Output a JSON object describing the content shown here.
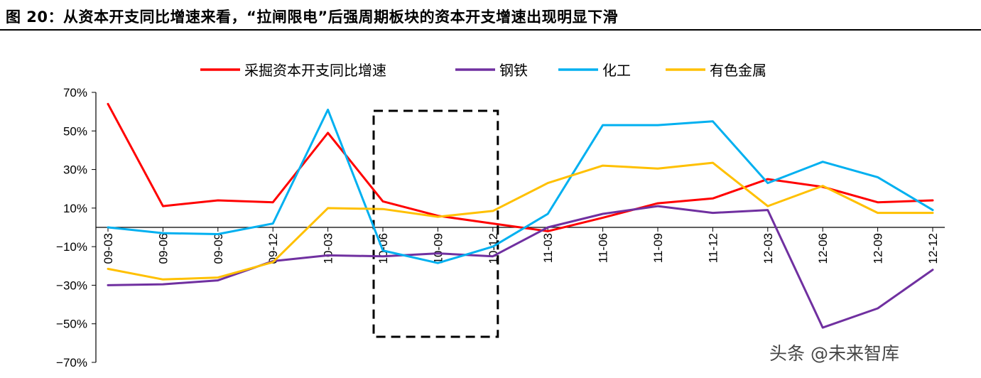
{
  "figure_title": "图 20：从资本开支同比增速来看，“拉闸限电”后强周期板块的资本开支增速出现明显下滑",
  "watermark": "头条 @未来智库",
  "chart_data": {
    "type": "line",
    "categories": [
      "09-03",
      "09-06",
      "09-09",
      "09-12",
      "10-03",
      "10-06",
      "10-09",
      "10-12",
      "11-03",
      "11-06",
      "11-09",
      "11-12",
      "12-03",
      "12-06",
      "12-09",
      "12-12"
    ],
    "y_ticks": [
      "70%",
      "50%",
      "30%",
      "10%",
      "−10%",
      "−30%",
      "−50%",
      "−70%"
    ],
    "ylim": [
      -70,
      70
    ],
    "y_unit": "%",
    "legend_position": "top",
    "grid": false,
    "series": [
      {
        "name": "采掘资本开支同比增速",
        "color": "#ff0000",
        "values": [
          64,
          11,
          14,
          13,
          49,
          13.5,
          6,
          2,
          -2,
          5,
          12.5,
          15,
          25,
          21,
          13,
          14
        ]
      },
      {
        "name": "钢铁",
        "color": "#7030a0",
        "values": [
          -30,
          -29.5,
          -27.5,
          -17.5,
          -14.5,
          -15,
          -13.5,
          -15,
          0,
          7,
          11,
          7.5,
          9,
          -52,
          -42,
          -22
        ]
      },
      {
        "name": "化工",
        "color": "#00b0f0",
        "values": [
          0,
          -3,
          -3.5,
          2,
          61,
          -12,
          -18.5,
          -10,
          7,
          53,
          53,
          55,
          23,
          34,
          26,
          9
        ]
      },
      {
        "name": "有色金属",
        "color": "#ffc000",
        "values": [
          -21.5,
          -27,
          -26,
          -18,
          10,
          9.5,
          5.5,
          8.5,
          23,
          32,
          30.5,
          33.5,
          11,
          21.5,
          7.5,
          7.5
        ]
      }
    ],
    "highlight_range": [
      "10-06",
      "10-12"
    ]
  }
}
